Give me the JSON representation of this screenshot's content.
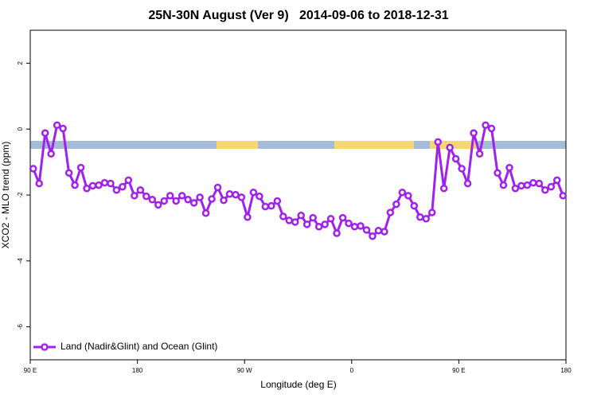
{
  "chart_data": {
    "type": "line",
    "title": "25N-30N August (Ver 9)   2014-09-06 to 2018-12-31",
    "x_label": "Longitude (deg E)",
    "y_label": "XCO2 - MLO trend (ppm)",
    "xlim": [
      90,
      540
    ],
    "ylim": [
      -7,
      3
    ],
    "xticks": [
      {
        "value": 90,
        "label": "90 E"
      },
      180,
      {
        "value": 270,
        "label": "90 W"
      },
      {
        "value": 360,
        "label": "0"
      },
      {
        "value": 450,
        "label": "90 E"
      },
      {
        "value": 540,
        "label": "180"
      }
    ],
    "yticks": [
      2,
      0,
      -2,
      -4,
      -6
    ],
    "legend": "bottom-left",
    "x": [
      92.5,
      97.5,
      102.5,
      107.5,
      112.5,
      117.5,
      122.5,
      127.5,
      132.5,
      137.5,
      142.5,
      147.5,
      152.5,
      157.5,
      162.5,
      167.5,
      172.5,
      177.5,
      182.5,
      187.5,
      192.5,
      197.5,
      202.5,
      207.5,
      212.5,
      217.5,
      222.5,
      227.5,
      232.5,
      237.5,
      242.5,
      247.5,
      252.5,
      257.5,
      262.5,
      267.5,
      272.5,
      277.5,
      282.5,
      287.5,
      292.5,
      297.5,
      302.5,
      307.5,
      312.5,
      317.5,
      322.5,
      327.5,
      332.5,
      337.5,
      342.5,
      347.5,
      352.5,
      357.5,
      362.5,
      367.5,
      372.5,
      377.5,
      382.5,
      387.5,
      392.5,
      397.5,
      402.5,
      407.5,
      412.5,
      417.5,
      422.5,
      427.5,
      432.5,
      437.5,
      442.5,
      447.5,
      452.5,
      457.5,
      462.5,
      467.5,
      472.5,
      477.5,
      482.5,
      487.5,
      492.5,
      497.5,
      502.5,
      507.5,
      512.5,
      517.5,
      522.5,
      527.5,
      532.5,
      537.5
    ],
    "series": [
      {
        "name": "Land (Nadir&Glint) and Ocean (Glint)",
        "color": "#a020f0",
        "values": [
          -1.2,
          -1.65,
          -0.12,
          -0.75,
          0.12,
          0.02,
          -1.33,
          -1.7,
          -1.17,
          -1.8,
          -1.72,
          -1.7,
          -1.63,
          -1.65,
          -1.85,
          -1.75,
          -1.55,
          -2.02,
          -1.85,
          -2.04,
          -2.14,
          -2.3,
          -2.18,
          -2.02,
          -2.18,
          -2.02,
          -2.14,
          -2.24,
          -2.07,
          -2.55,
          -2.12,
          -1.77,
          -2.16,
          -1.97,
          -1.99,
          -2.07,
          -2.67,
          -1.92,
          -2.04,
          -2.35,
          -2.33,
          -2.18,
          -2.65,
          -2.77,
          -2.82,
          -2.62,
          -2.89,
          -2.69,
          -2.96,
          -2.89,
          -2.72,
          -3.16,
          -2.69,
          -2.86,
          -2.96,
          -2.94,
          -3.06,
          -3.25,
          -3.08,
          -3.11,
          -2.53,
          -2.28,
          -1.92,
          -2.02,
          -2.33,
          -2.67,
          -2.72,
          -2.53,
          -0.39,
          -1.8,
          -0.56,
          -0.9,
          -1.2,
          -1.65,
          -0.12,
          -0.75,
          0.12,
          0.02,
          -1.33,
          -1.7,
          -1.17,
          -1.8,
          -1.72,
          -1.7,
          -1.63,
          -1.65,
          -1.85,
          -1.75,
          -1.55,
          -2.02
        ]
      }
    ]
  }
}
